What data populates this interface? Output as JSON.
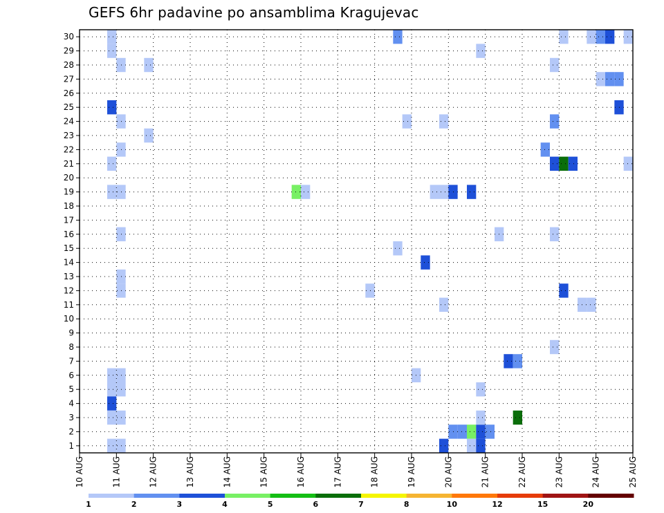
{
  "chart_data": {
    "type": "heatmap",
    "title": "GEFS 6hr padavine po ansamblima Kragujevac",
    "xlabel": "",
    "ylabel": "",
    "x_tick_labels": [
      "10 AUG",
      "11 AUG",
      "12 AUG",
      "13 AUG",
      "14 AUG",
      "15 AUG",
      "16 AUG",
      "17 AUG",
      "18 AUG",
      "19 AUG",
      "20 AUG",
      "21 AUG",
      "22 AUG",
      "23 AUG",
      "24 AUG",
      "25 AUG"
    ],
    "x_unit": "6-hour step (4 per day)",
    "x_range_days": [
      10,
      25
    ],
    "y_tick_labels": [
      "1",
      "2",
      "3",
      "4",
      "5",
      "6",
      "7",
      "8",
      "9",
      "10",
      "11",
      "12",
      "13",
      "14",
      "15",
      "16",
      "17",
      "18",
      "19",
      "20",
      "21",
      "22",
      "23",
      "24",
      "25",
      "26",
      "27",
      "28",
      "29",
      "30"
    ],
    "y_range": [
      0.5,
      30.5
    ],
    "grid": true,
    "colorbar": {
      "position": "bottom",
      "bounds": [
        "1",
        "2",
        "3",
        "4",
        "5",
        "6",
        "7",
        "8",
        "10",
        "12",
        "15",
        "20"
      ],
      "colors": [
        "#b4c8f8",
        "#6290f0",
        "#1e50d8",
        "#78f064",
        "#14be14",
        "#0a6e0a",
        "#f5f500",
        "#f5b432",
        "#ff780a",
        "#e63c0a",
        "#a01414",
        "#640000"
      ]
    },
    "cells_note": "each cell: day = forecast day of AUG at 6h step start, member = ensemble member (row), level = index into colorbar.colors",
    "cells": [
      {
        "day": 10.75,
        "member": 30,
        "level": 0
      },
      {
        "day": 10.75,
        "member": 29,
        "level": 0
      },
      {
        "day": 11.0,
        "member": 28,
        "level": 0
      },
      {
        "day": 11.75,
        "member": 28,
        "level": 0
      },
      {
        "day": 10.75,
        "member": 25,
        "level": 2
      },
      {
        "day": 11.0,
        "member": 24,
        "level": 0
      },
      {
        "day": 11.75,
        "member": 23,
        "level": 0
      },
      {
        "day": 11.0,
        "member": 22,
        "level": 0
      },
      {
        "day": 10.75,
        "member": 21,
        "level": 0
      },
      {
        "day": 10.75,
        "member": 19,
        "level": 0
      },
      {
        "day": 11.0,
        "member": 19,
        "level": 0
      },
      {
        "day": 11.0,
        "member": 16,
        "level": 0
      },
      {
        "day": 11.0,
        "member": 13,
        "level": 0
      },
      {
        "day": 11.0,
        "member": 12,
        "level": 0
      },
      {
        "day": 10.75,
        "member": 6,
        "level": 0
      },
      {
        "day": 11.0,
        "member": 6,
        "level": 0
      },
      {
        "day": 10.75,
        "member": 5,
        "level": 0
      },
      {
        "day": 11.0,
        "member": 5,
        "level": 0
      },
      {
        "day": 10.75,
        "member": 4,
        "level": 2
      },
      {
        "day": 10.75,
        "member": 3,
        "level": 0
      },
      {
        "day": 11.0,
        "member": 3,
        "level": 0
      },
      {
        "day": 10.75,
        "member": 1,
        "level": 0
      },
      {
        "day": 11.0,
        "member": 1,
        "level": 0
      },
      {
        "day": 15.75,
        "member": 19,
        "level": 3
      },
      {
        "day": 16.0,
        "member": 19,
        "level": 0
      },
      {
        "day": 17.75,
        "member": 12,
        "level": 0
      },
      {
        "day": 18.5,
        "member": 30,
        "level": 1
      },
      {
        "day": 18.75,
        "member": 24,
        "level": 0
      },
      {
        "day": 18.5,
        "member": 15,
        "level": 0
      },
      {
        "day": 19.0,
        "member": 6,
        "level": 0
      },
      {
        "day": 19.25,
        "member": 14,
        "level": 2
      },
      {
        "day": 19.5,
        "member": 19,
        "level": 0
      },
      {
        "day": 19.75,
        "member": 19,
        "level": 0
      },
      {
        "day": 19.75,
        "member": 24,
        "level": 0
      },
      {
        "day": 19.75,
        "member": 11,
        "level": 0
      },
      {
        "day": 20.0,
        "member": 19,
        "level": 2
      },
      {
        "day": 20.5,
        "member": 19,
        "level": 2
      },
      {
        "day": 19.75,
        "member": 1,
        "level": 2
      },
      {
        "day": 20.0,
        "member": 2,
        "level": 1
      },
      {
        "day": 20.25,
        "member": 2,
        "level": 1
      },
      {
        "day": 20.5,
        "member": 2,
        "level": 3
      },
      {
        "day": 20.75,
        "member": 2,
        "level": 2
      },
      {
        "day": 21.0,
        "member": 2,
        "level": 1
      },
      {
        "day": 20.5,
        "member": 1,
        "level": 0
      },
      {
        "day": 20.75,
        "member": 1,
        "level": 2
      },
      {
        "day": 20.75,
        "member": 3,
        "level": 0
      },
      {
        "day": 20.75,
        "member": 5,
        "level": 0
      },
      {
        "day": 20.75,
        "member": 29,
        "level": 0
      },
      {
        "day": 21.25,
        "member": 16,
        "level": 0
      },
      {
        "day": 21.5,
        "member": 7,
        "level": 2
      },
      {
        "day": 21.75,
        "member": 7,
        "level": 1
      },
      {
        "day": 21.75,
        "member": 3,
        "level": 5
      },
      {
        "day": 22.5,
        "member": 22,
        "level": 1
      },
      {
        "day": 22.75,
        "member": 28,
        "level": 0
      },
      {
        "day": 22.75,
        "member": 24,
        "level": 1
      },
      {
        "day": 22.75,
        "member": 21,
        "level": 2
      },
      {
        "day": 23.0,
        "member": 21,
        "level": 5
      },
      {
        "day": 23.25,
        "member": 21,
        "level": 2
      },
      {
        "day": 22.75,
        "member": 16,
        "level": 0
      },
      {
        "day": 23.0,
        "member": 30,
        "level": 0
      },
      {
        "day": 23.0,
        "member": 12,
        "level": 2
      },
      {
        "day": 22.75,
        "member": 8,
        "level": 0
      },
      {
        "day": 23.5,
        "member": 11,
        "level": 0
      },
      {
        "day": 23.75,
        "member": 11,
        "level": 0
      },
      {
        "day": 23.75,
        "member": 30,
        "level": 0
      },
      {
        "day": 24.0,
        "member": 30,
        "level": 1
      },
      {
        "day": 24.25,
        "member": 30,
        "level": 2
      },
      {
        "day": 24.75,
        "member": 30,
        "level": 0
      },
      {
        "day": 24.0,
        "member": 27,
        "level": 0
      },
      {
        "day": 24.25,
        "member": 27,
        "level": 1
      },
      {
        "day": 24.5,
        "member": 27,
        "level": 1
      },
      {
        "day": 24.5,
        "member": 25,
        "level": 2
      },
      {
        "day": 24.75,
        "member": 21,
        "level": 0
      }
    ]
  }
}
